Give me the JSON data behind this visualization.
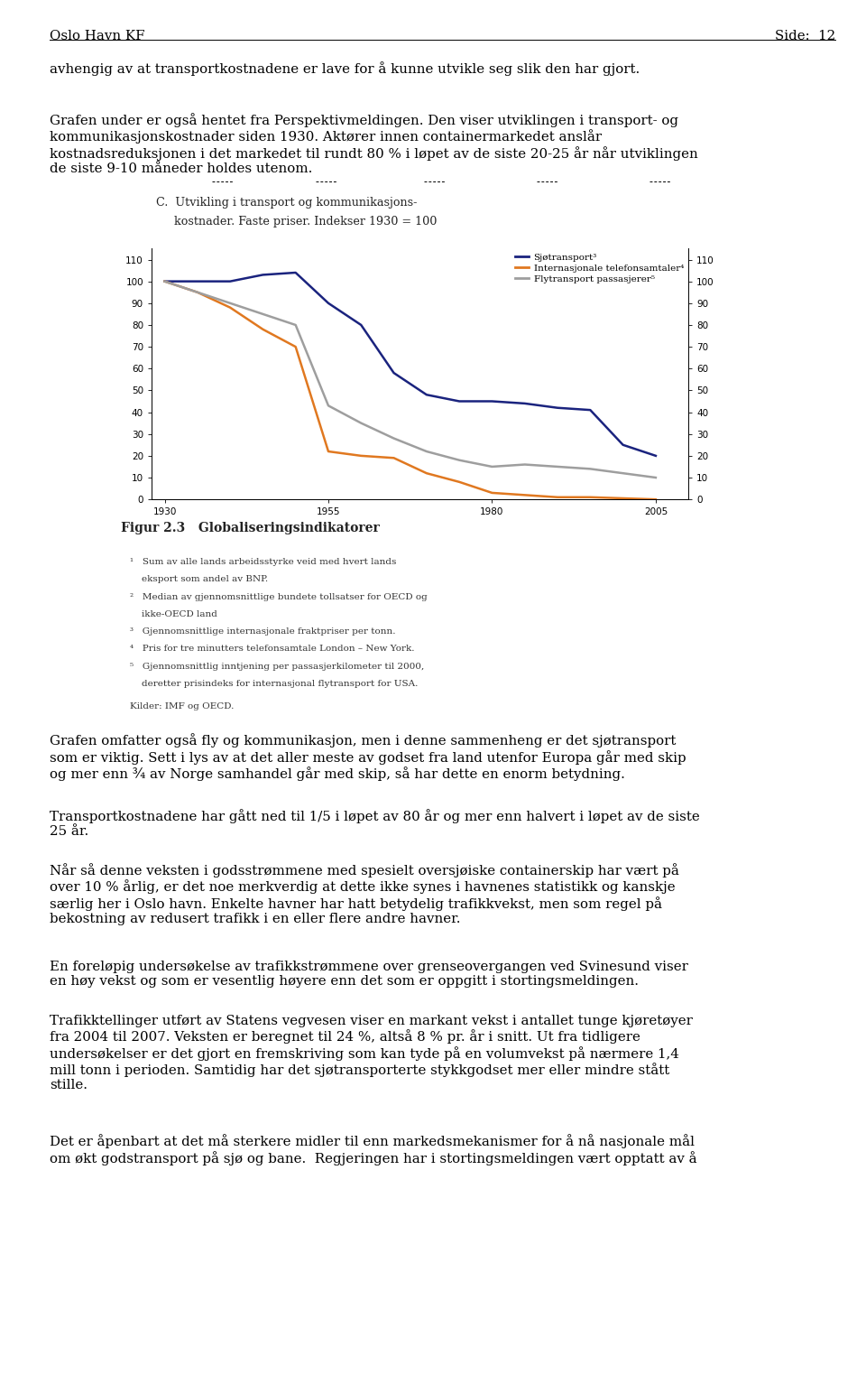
{
  "page_header_left": "Oslo Havn KF",
  "page_header_right": "Side:  12",
  "background_color": "#ffffff",
  "text_block_1": "avhengig av at transportkostnadene er lave for å kunne utvikle seg slik den har gjort.",
  "text_block_2": "Grafen under er også hentet fra Perspektivmeldingen. Den viser utviklingen i transport- og\nkommunikasjonskostnader siden 1930. Aktører innen containermarkedet anslår\nkostnadsreduksjonen i det markedet til rundt 80 % i løpet av de siste 20-25 år når utviklingen\nde siste 9-10 måneder holdes utenom.",
  "chart_title_line1": "C.  Utvikling i transport og kommunikasjons-",
  "chart_title_line2": "     kostnader. Faste priser. Indekser 1930 = 100",
  "chart_yticks": [
    0,
    10,
    20,
    30,
    40,
    50,
    60,
    70,
    80,
    90,
    100,
    110
  ],
  "chart_xticks": [
    1930,
    1955,
    1980,
    2005
  ],
  "chart_xlim": [
    1928,
    2010
  ],
  "chart_ylim": [
    0,
    115
  ],
  "series_sjo_x": [
    1930,
    1935,
    1940,
    1945,
    1950,
    1955,
    1960,
    1965,
    1970,
    1975,
    1980,
    1985,
    1990,
    1995,
    2000,
    2005
  ],
  "series_sjo_y": [
    100,
    100,
    100,
    103,
    104,
    90,
    80,
    58,
    48,
    45,
    45,
    44,
    42,
    41,
    25,
    20
  ],
  "series_sjo_color": "#1a237e",
  "series_sjo_name": "Sjøtransport³",
  "series_tel_x": [
    1930,
    1935,
    1940,
    1945,
    1950,
    1955,
    1960,
    1965,
    1970,
    1975,
    1980,
    1985,
    1990,
    1995,
    2000,
    2005
  ],
  "series_tel_y": [
    100,
    95,
    88,
    78,
    70,
    22,
    20,
    19,
    12,
    8,
    3,
    2,
    1,
    1,
    0.5,
    0
  ],
  "series_tel_color": "#e07820",
  "series_tel_name": "Internasjonale telefonsamtaler⁴",
  "series_fly_x": [
    1930,
    1940,
    1950,
    1955,
    1960,
    1965,
    1970,
    1975,
    1980,
    1985,
    1990,
    1995,
    2000,
    2005
  ],
  "series_fly_y": [
    100,
    90,
    80,
    43,
    35,
    28,
    22,
    18,
    15,
    16,
    15,
    14,
    12,
    10
  ],
  "series_fly_color": "#9e9e9e",
  "series_fly_name": "Flytransport passasjerer⁵",
  "figure_caption": "Figur 2.3   Globaliseringsindikatorer",
  "footnotes": [
    "¹   Sum av alle lands arbeidsstyrke veid med hvert lands",
    "    eksport som andel av BNP.",
    "²   Median av gjennomsnittlige bundete tollsatser for OECD og",
    "    ikke-OECD land",
    "³   Gjennomsnittlige internasjonale fraktpriser per tonn.",
    "⁴   Pris for tre minutters telefonsamtale London – New York.",
    "⁵   Gjennomsnittlig inntjening per passasjerkilometer til 2000,",
    "    deretter prisindeks for internasjonal flytransport for USA."
  ],
  "source_line": "Kilder: IMF og OECD.",
  "bottom_blocks": [
    "Grafen omfatter også fly og kommunikasjon, men i denne sammenheng er det sjøtransport\nsom er viktig. Sett i lys av at det aller meste av godset fra land utenfor Europa går med skip\nog mer enn ¾ av Norge samhandel går med skip, så har dette en enorm betydning.",
    "Transportkostnadene har gått ned til 1/5 i løpet av 80 år og mer enn halvert i løpet av de siste\n25 år.",
    "Når så denne veksten i godsstrømmene med spesielt oversjøiske containerskip har vært på\nover 10 % årlig, er det noe merkverdig at dette ikke synes i havnenes statistikk og kanskje\nsærlig her i Oslo havn. Enkelte havner har hatt betydelig trafikkvekst, men som regel på\nbekostning av redusert trafikk i en eller flere andre havner.",
    "En foreløpig undersøkelse av trafikkstrømmene over grenseovergangen ved Svinesund viser\nen høy vekst og som er vesentlig høyere enn det som er oppgitt i stortingsmeldingen.",
    "Trafikktellinger utført av Statens vegvesen viser en markant vekst i antallet tunge kjøretøyer\nfra 2004 til 2007. Veksten er beregnet til 24 %, altså 8 % pr. år i snitt. Ut fra tidligere\nundersøkelser er det gjort en fremskriving som kan tyde på en volumvekst på nærmere 1,4\nmill tonn i perioden. Samtidig har det sjøtransporterte stykkgodset mer eller mindre stått\nstille.",
    "Det er åpenbart at det må sterkere midler til enn markedsmekanismer for å nå nasjonale mål\nom økt godstransport på sjø og bane.  Regjeringen har i stortingsmeldingen vært opptatt av å"
  ]
}
